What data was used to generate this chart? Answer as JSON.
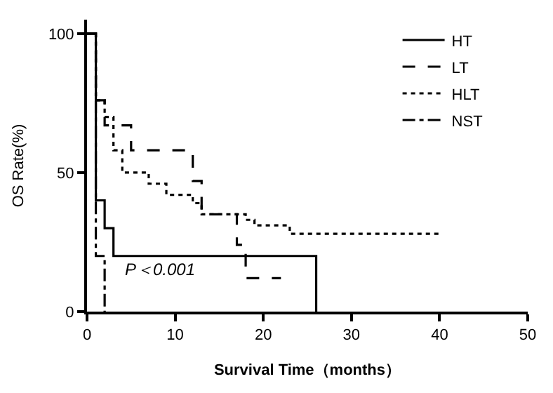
{
  "chart_data": {
    "type": "step",
    "xlabel": "Survival Time（months）",
    "ylabel": "OS Rate(%)",
    "xlim": [
      0,
      50
    ],
    "xticks": [
      0,
      10,
      20,
      30,
      40,
      50
    ],
    "ylim": [
      0,
      105
    ],
    "yticks": [
      0,
      50,
      100
    ],
    "legend": "top right",
    "marker": "none",
    "annotations": [
      "P＜0.001"
    ],
    "series": [
      {
        "name": "HT",
        "color": "#000000",
        "line_style": "solid",
        "x": [
          0,
          1,
          2,
          3,
          26,
          26
        ],
        "values": [
          100,
          40,
          30,
          20,
          0,
          0
        ]
      },
      {
        "name": "LT",
        "color": "#000000",
        "line_style": "dashed",
        "x": [
          0,
          1,
          2,
          5,
          12,
          13,
          17,
          18,
          22
        ],
        "values": [
          100,
          76,
          67,
          58,
          47,
          35,
          24,
          12,
          12
        ]
      },
      {
        "name": "HLT",
        "color": "#000000",
        "line_style": "dotted",
        "x": [
          0,
          1,
          2,
          3,
          4,
          7,
          9,
          12,
          13,
          18,
          19,
          23,
          40
        ],
        "values": [
          100,
          76,
          70,
          58,
          50,
          46,
          42,
          39,
          35,
          33,
          31,
          28,
          28
        ]
      },
      {
        "name": "NST",
        "color": "#000000",
        "line_style": "dashdot",
        "x": [
          0,
          1,
          2,
          2
        ],
        "values": [
          100,
          20,
          0,
          0
        ]
      }
    ]
  }
}
